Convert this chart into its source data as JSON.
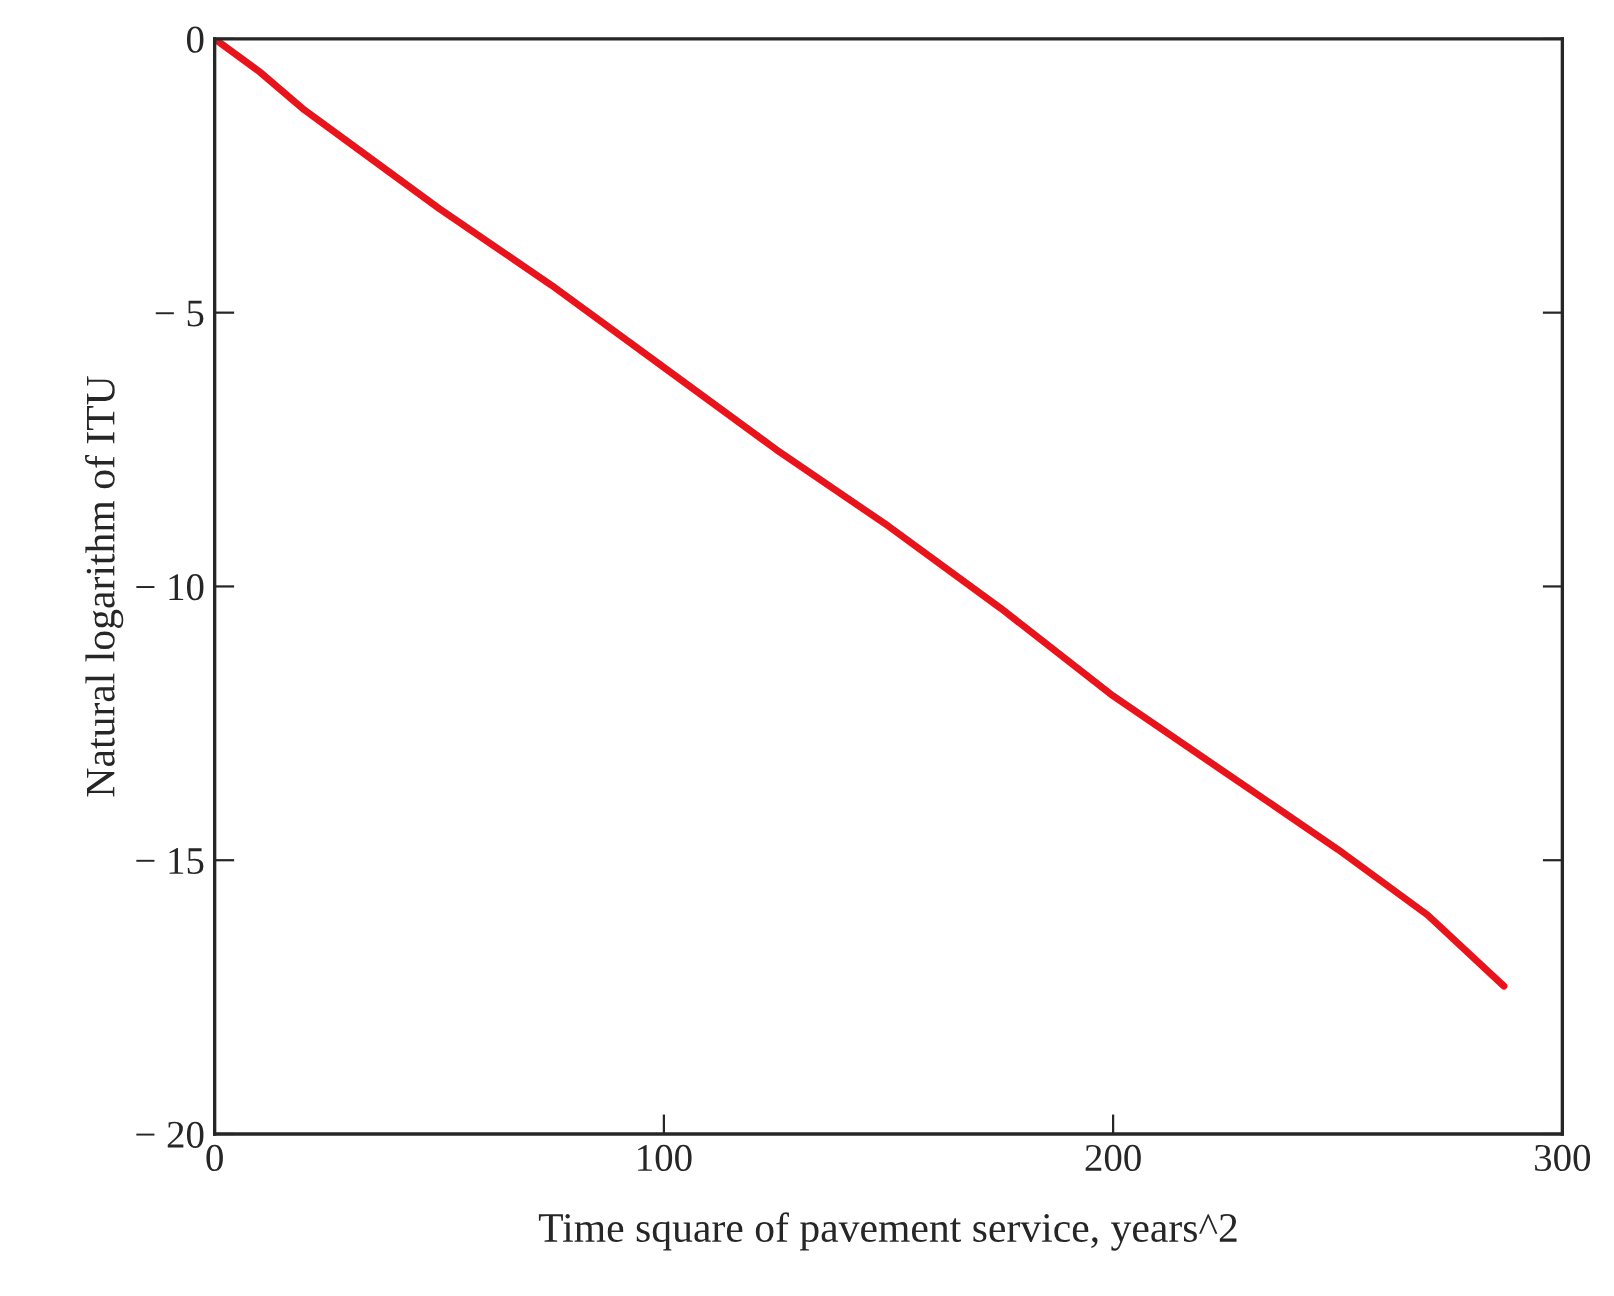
{
  "chart_data": {
    "type": "line",
    "xlabel": "Time square of pavement service, years^2",
    "ylabel": "Natural logarithm of ITU",
    "x": [
      0,
      10,
      20,
      30,
      50,
      75,
      100,
      125,
      150,
      175,
      200,
      225,
      250,
      270,
      287
    ],
    "series": [
      {
        "color": "#e8141b",
        "values": [
          0,
          -0.6,
          -1.3,
          -1.9,
          -3.1,
          -4.5,
          -6.0,
          -7.5,
          -8.9,
          -10.4,
          -12.0,
          -13.4,
          -14.8,
          -16.0,
          -17.3
        ]
      }
    ],
    "xlim": [
      0,
      300
    ],
    "ylim": [
      -20,
      0
    ],
    "xticks": [
      0,
      100,
      200,
      300
    ],
    "yticks": [
      {
        "value": -20,
        "label": "− 20"
      },
      {
        "value": -15,
        "label": "− 15"
      },
      {
        "value": -10,
        "label": "− 10"
      },
      {
        "value": -5,
        "label": "− 5"
      },
      0
    ],
    "marker": "none",
    "line_style": "solid"
  }
}
